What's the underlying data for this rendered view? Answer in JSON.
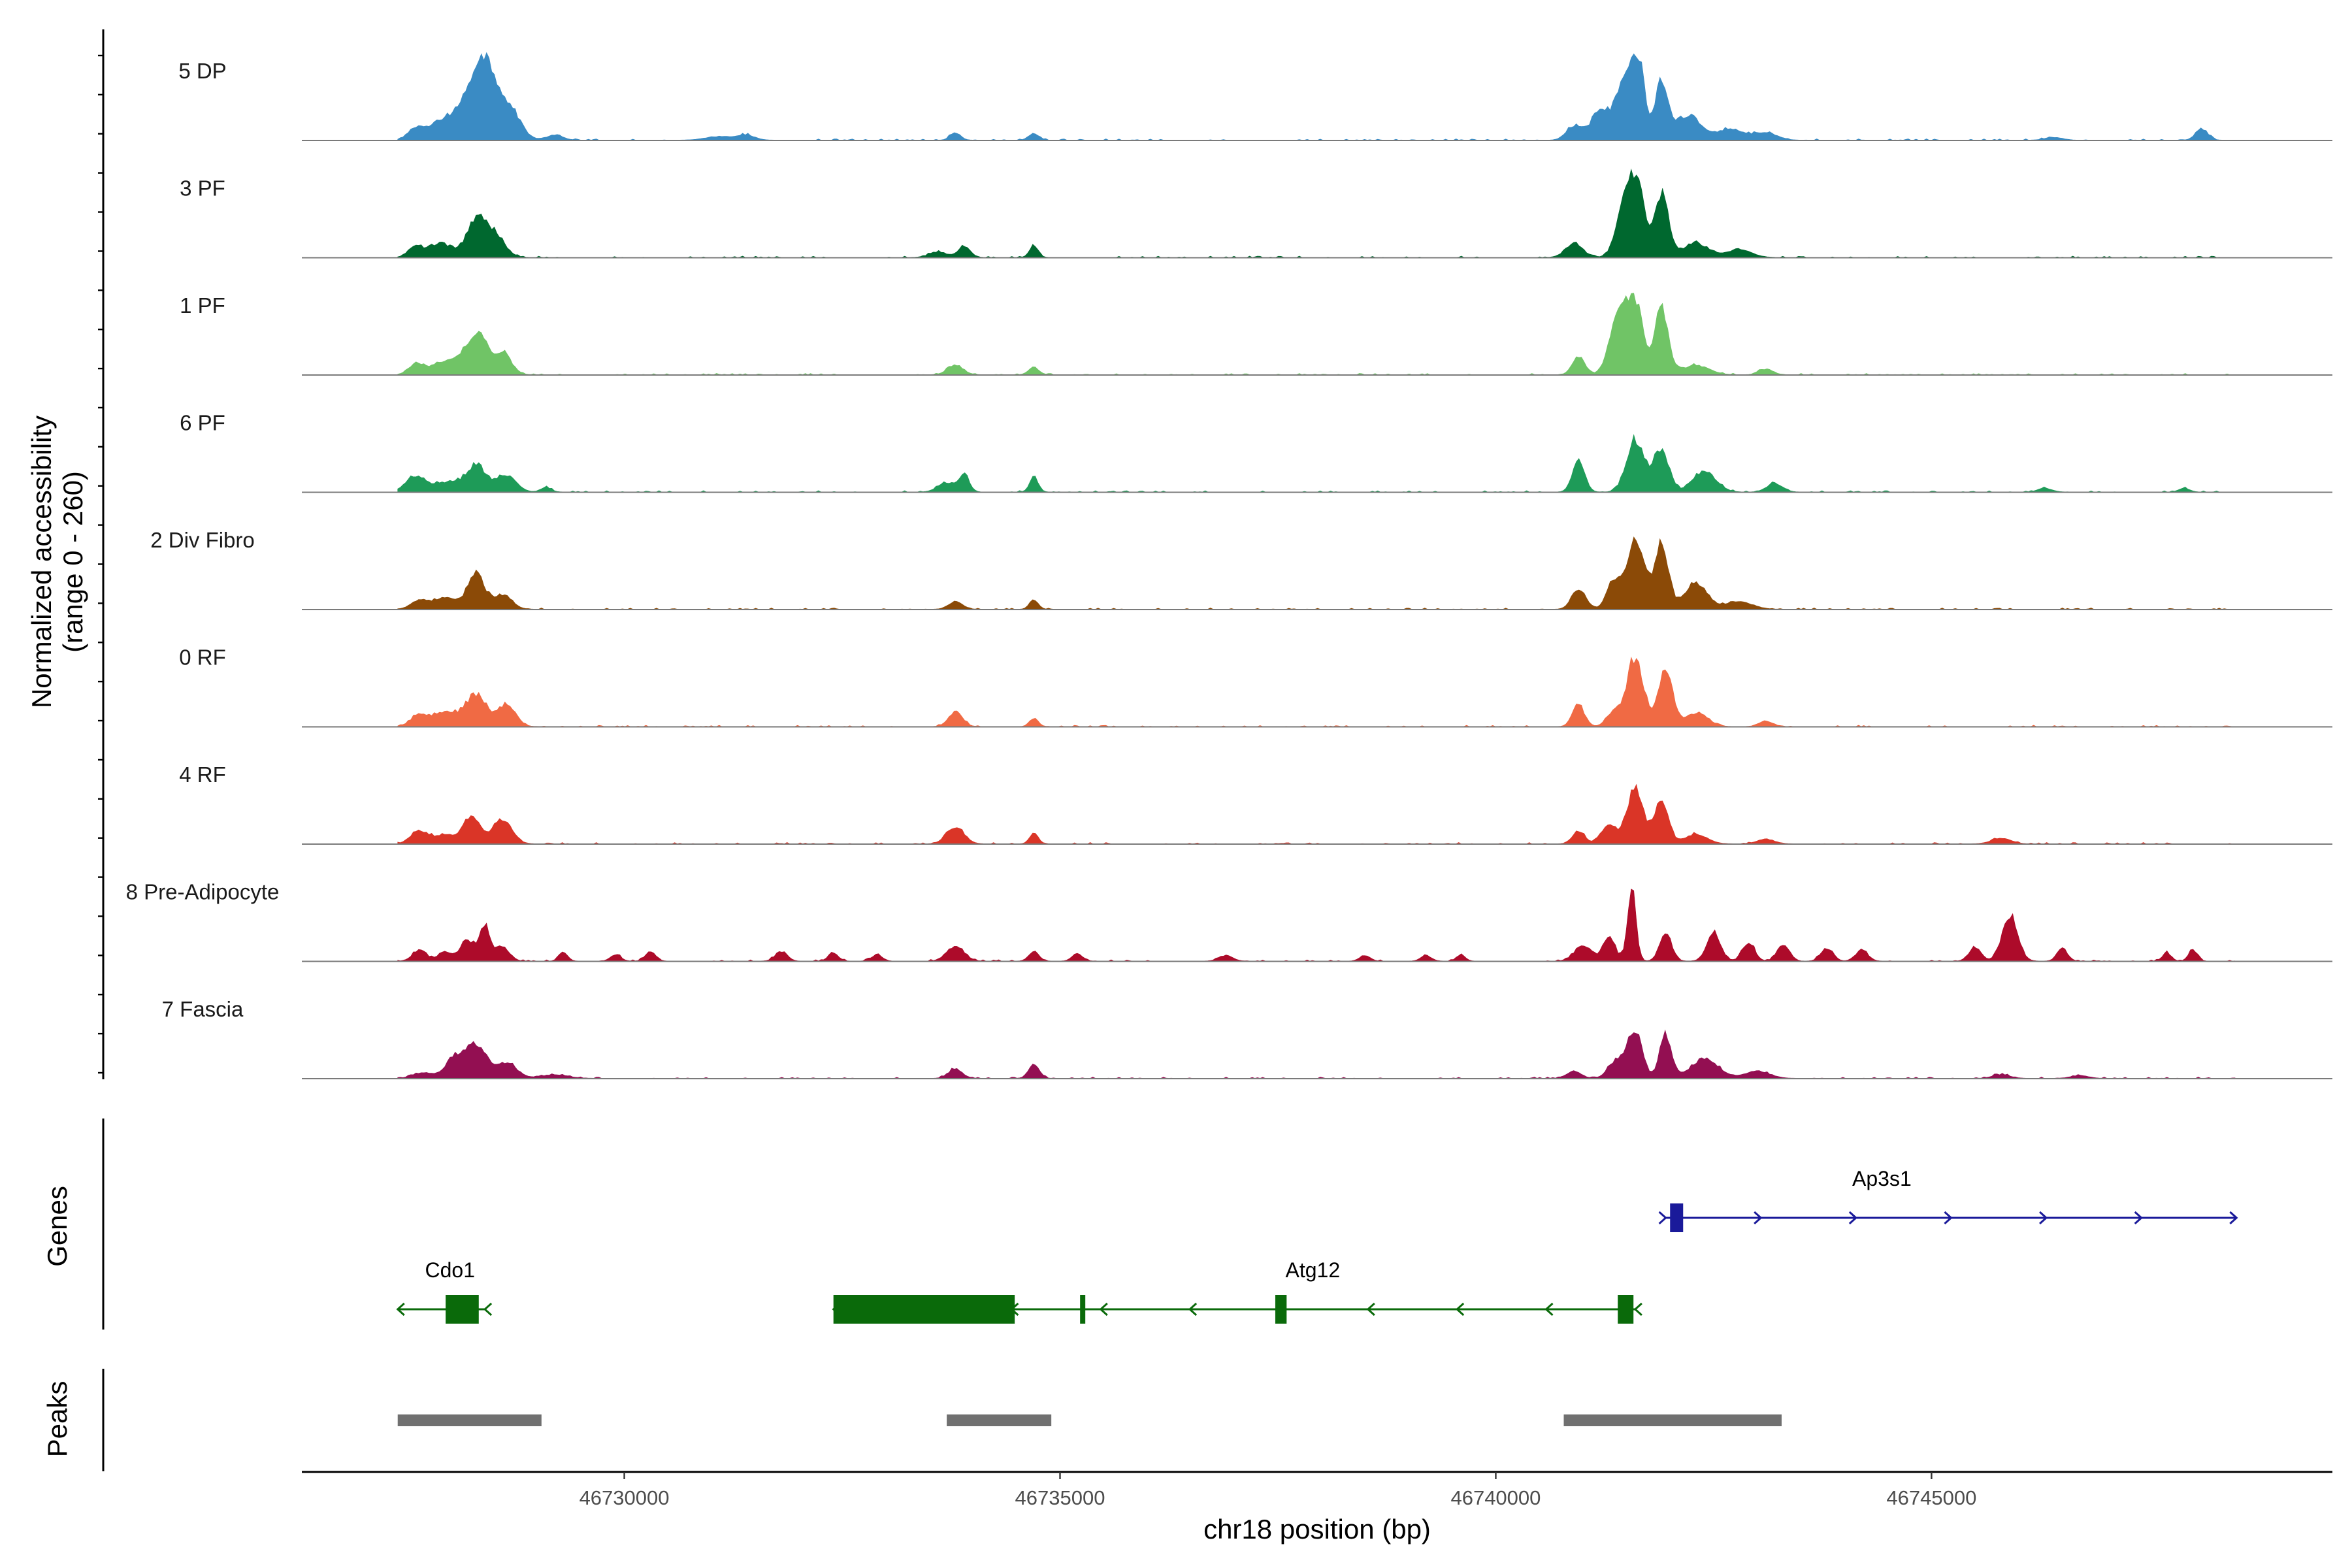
{
  "chart_data": {
    "type": "area",
    "title": "",
    "ylabel_line1": "Normalized accessibility",
    "ylabel_line2": "(range 0 - 260)",
    "xlabel": "chr18 position (bp)",
    "xlim": [
      46726300,
      46749600
    ],
    "ylim": [
      0,
      260
    ],
    "xticks": [
      46730000,
      46735000,
      46740000,
      46745000
    ],
    "xtick_labels": [
      "46730000",
      "46735000",
      "46740000",
      "46745000"
    ],
    "tracks": [
      {
        "name": "5 DP",
        "color": "#3A8BC4",
        "region_start": 46727400,
        "region_end": 46748500,
        "peaks": [
          {
            "pos": 46727600,
            "h": 0.1,
            "w": 80
          },
          {
            "pos": 46727900,
            "h": 0.18,
            "w": 180
          },
          {
            "pos": 46728200,
            "h": 0.35,
            "w": 140
          },
          {
            "pos": 46728350,
            "h": 0.55,
            "w": 90
          },
          {
            "pos": 46728500,
            "h": 0.48,
            "w": 100
          },
          {
            "pos": 46728700,
            "h": 0.3,
            "w": 120
          },
          {
            "pos": 46729200,
            "h": 0.05,
            "w": 100
          },
          {
            "pos": 46731100,
            "h": 0.04,
            "w": 160
          },
          {
            "pos": 46731400,
            "h": 0.05,
            "w": 100
          },
          {
            "pos": 46733800,
            "h": 0.08,
            "w": 60
          },
          {
            "pos": 46734700,
            "h": 0.07,
            "w": 60
          },
          {
            "pos": 46740900,
            "h": 0.15,
            "w": 90
          },
          {
            "pos": 46741200,
            "h": 0.3,
            "w": 110
          },
          {
            "pos": 46741500,
            "h": 0.68,
            "w": 110
          },
          {
            "pos": 46741650,
            "h": 0.6,
            "w": 70
          },
          {
            "pos": 46741900,
            "h": 0.58,
            "w": 70
          },
          {
            "pos": 46742200,
            "h": 0.25,
            "w": 160
          },
          {
            "pos": 46742700,
            "h": 0.12,
            "w": 150
          },
          {
            "pos": 46743100,
            "h": 0.08,
            "w": 130
          },
          {
            "pos": 46746400,
            "h": 0.03,
            "w": 100
          },
          {
            "pos": 46748100,
            "h": 0.12,
            "w": 70
          }
        ]
      },
      {
        "name": "3 PF",
        "color": "#00682F",
        "region_start": 46727400,
        "region_end": 46748500,
        "peaks": [
          {
            "pos": 46727600,
            "h": 0.1,
            "w": 80
          },
          {
            "pos": 46727900,
            "h": 0.14,
            "w": 160
          },
          {
            "pos": 46728300,
            "h": 0.38,
            "w": 100
          },
          {
            "pos": 46728500,
            "h": 0.25,
            "w": 120
          },
          {
            "pos": 46733600,
            "h": 0.06,
            "w": 100
          },
          {
            "pos": 46733900,
            "h": 0.12,
            "w": 70
          },
          {
            "pos": 46734700,
            "h": 0.12,
            "w": 50
          },
          {
            "pos": 46740900,
            "h": 0.15,
            "w": 100
          },
          {
            "pos": 46741500,
            "h": 0.72,
            "w": 100
          },
          {
            "pos": 46741650,
            "h": 0.55,
            "w": 70
          },
          {
            "pos": 46741900,
            "h": 0.68,
            "w": 80
          },
          {
            "pos": 46742300,
            "h": 0.15,
            "w": 150
          },
          {
            "pos": 46742800,
            "h": 0.08,
            "w": 140
          }
        ]
      },
      {
        "name": "1 PF",
        "color": "#70C466",
        "region_start": 46727400,
        "region_end": 46748500,
        "peaks": [
          {
            "pos": 46727600,
            "h": 0.1,
            "w": 80
          },
          {
            "pos": 46727900,
            "h": 0.12,
            "w": 160
          },
          {
            "pos": 46728200,
            "h": 0.22,
            "w": 120
          },
          {
            "pos": 46728350,
            "h": 0.32,
            "w": 90
          },
          {
            "pos": 46728600,
            "h": 0.24,
            "w": 100
          },
          {
            "pos": 46733800,
            "h": 0.1,
            "w": 90
          },
          {
            "pos": 46734700,
            "h": 0.08,
            "w": 60
          },
          {
            "pos": 46740950,
            "h": 0.2,
            "w": 70
          },
          {
            "pos": 46741400,
            "h": 0.6,
            "w": 100
          },
          {
            "pos": 46741600,
            "h": 0.75,
            "w": 90
          },
          {
            "pos": 46741900,
            "h": 0.7,
            "w": 80
          },
          {
            "pos": 46742300,
            "h": 0.1,
            "w": 150
          },
          {
            "pos": 46743100,
            "h": 0.06,
            "w": 80
          }
        ]
      },
      {
        "name": "6 PF",
        "color": "#1E9B58",
        "region_start": 46727400,
        "region_end": 46748500,
        "peaks": [
          {
            "pos": 46727600,
            "h": 0.16,
            "w": 110
          },
          {
            "pos": 46727950,
            "h": 0.1,
            "w": 150
          },
          {
            "pos": 46728300,
            "h": 0.28,
            "w": 120
          },
          {
            "pos": 46728650,
            "h": 0.18,
            "w": 110
          },
          {
            "pos": 46729100,
            "h": 0.05,
            "w": 60
          },
          {
            "pos": 46733700,
            "h": 0.1,
            "w": 100
          },
          {
            "pos": 46733900,
            "h": 0.18,
            "w": 60
          },
          {
            "pos": 46734700,
            "h": 0.16,
            "w": 50
          },
          {
            "pos": 46740950,
            "h": 0.34,
            "w": 70
          },
          {
            "pos": 46741600,
            "h": 0.55,
            "w": 100
          },
          {
            "pos": 46741900,
            "h": 0.45,
            "w": 90
          },
          {
            "pos": 46742400,
            "h": 0.22,
            "w": 130
          },
          {
            "pos": 46743200,
            "h": 0.09,
            "w": 90
          },
          {
            "pos": 46746300,
            "h": 0.04,
            "w": 80
          },
          {
            "pos": 46747900,
            "h": 0.04,
            "w": 60
          }
        ]
      },
      {
        "name": "2 Div Fibro",
        "color": "#8B4A07",
        "region_start": 46727400,
        "region_end": 46748500,
        "peaks": [
          {
            "pos": 46727650,
            "h": 0.09,
            "w": 100
          },
          {
            "pos": 46727950,
            "h": 0.12,
            "w": 140
          },
          {
            "pos": 46728300,
            "h": 0.4,
            "w": 90
          },
          {
            "pos": 46728600,
            "h": 0.15,
            "w": 110
          },
          {
            "pos": 46733800,
            "h": 0.08,
            "w": 80
          },
          {
            "pos": 46734700,
            "h": 0.1,
            "w": 50
          },
          {
            "pos": 46740950,
            "h": 0.22,
            "w": 80
          },
          {
            "pos": 46741350,
            "h": 0.3,
            "w": 80
          },
          {
            "pos": 46741600,
            "h": 0.75,
            "w": 100
          },
          {
            "pos": 46741900,
            "h": 0.68,
            "w": 80
          },
          {
            "pos": 46742300,
            "h": 0.28,
            "w": 130
          },
          {
            "pos": 46742800,
            "h": 0.08,
            "w": 150
          }
        ]
      },
      {
        "name": "0 RF",
        "color": "#F06A44",
        "region_start": 46727400,
        "region_end": 46748500,
        "peaks": [
          {
            "pos": 46727650,
            "h": 0.12,
            "w": 100
          },
          {
            "pos": 46727950,
            "h": 0.15,
            "w": 140
          },
          {
            "pos": 46728300,
            "h": 0.33,
            "w": 120
          },
          {
            "pos": 46728650,
            "h": 0.24,
            "w": 100
          },
          {
            "pos": 46733800,
            "h": 0.16,
            "w": 80
          },
          {
            "pos": 46734700,
            "h": 0.09,
            "w": 50
          },
          {
            "pos": 46740950,
            "h": 0.22,
            "w": 70
          },
          {
            "pos": 46741350,
            "h": 0.14,
            "w": 80
          },
          {
            "pos": 46741600,
            "h": 0.72,
            "w": 100
          },
          {
            "pos": 46741950,
            "h": 0.62,
            "w": 80
          },
          {
            "pos": 46742300,
            "h": 0.14,
            "w": 130
          },
          {
            "pos": 46743100,
            "h": 0.06,
            "w": 80
          }
        ]
      },
      {
        "name": "4 RF",
        "color": "#DA3527",
        "region_start": 46727400,
        "region_end": 46748500,
        "peaks": [
          {
            "pos": 46727650,
            "h": 0.14,
            "w": 100
          },
          {
            "pos": 46727950,
            "h": 0.09,
            "w": 120
          },
          {
            "pos": 46728250,
            "h": 0.28,
            "w": 100
          },
          {
            "pos": 46728600,
            "h": 0.26,
            "w": 110
          },
          {
            "pos": 46733800,
            "h": 0.18,
            "w": 100
          },
          {
            "pos": 46734700,
            "h": 0.11,
            "w": 50
          },
          {
            "pos": 46740950,
            "h": 0.14,
            "w": 70
          },
          {
            "pos": 46741300,
            "h": 0.2,
            "w": 90
          },
          {
            "pos": 46741600,
            "h": 0.62,
            "w": 90
          },
          {
            "pos": 46741900,
            "h": 0.46,
            "w": 80
          },
          {
            "pos": 46742300,
            "h": 0.1,
            "w": 130
          },
          {
            "pos": 46743100,
            "h": 0.05,
            "w": 100
          },
          {
            "pos": 46745800,
            "h": 0.06,
            "w": 110
          }
        ]
      },
      {
        "name": "8 Pre-Adipocyte",
        "color": "#AD0B2A",
        "region_start": 46727400,
        "region_end": 46748500,
        "peaks": [
          {
            "pos": 46727650,
            "h": 0.12,
            "w": 80
          },
          {
            "pos": 46727950,
            "h": 0.1,
            "w": 80
          },
          {
            "pos": 46728200,
            "h": 0.22,
            "w": 80
          },
          {
            "pos": 46728400,
            "h": 0.38,
            "w": 60
          },
          {
            "pos": 46728600,
            "h": 0.16,
            "w": 80
          },
          {
            "pos": 46729300,
            "h": 0.1,
            "w": 50
          },
          {
            "pos": 46729900,
            "h": 0.07,
            "w": 60
          },
          {
            "pos": 46730300,
            "h": 0.1,
            "w": 60
          },
          {
            "pos": 46731800,
            "h": 0.1,
            "w": 70
          },
          {
            "pos": 46732400,
            "h": 0.08,
            "w": 60
          },
          {
            "pos": 46732900,
            "h": 0.07,
            "w": 60
          },
          {
            "pos": 46733800,
            "h": 0.16,
            "w": 100
          },
          {
            "pos": 46734700,
            "h": 0.1,
            "w": 60
          },
          {
            "pos": 46735200,
            "h": 0.08,
            "w": 60
          },
          {
            "pos": 46736900,
            "h": 0.06,
            "w": 80
          },
          {
            "pos": 46738500,
            "h": 0.06,
            "w": 60
          },
          {
            "pos": 46739200,
            "h": 0.06,
            "w": 60
          },
          {
            "pos": 46739600,
            "h": 0.07,
            "w": 50
          },
          {
            "pos": 46741000,
            "h": 0.16,
            "w": 100
          },
          {
            "pos": 46741300,
            "h": 0.26,
            "w": 70
          },
          {
            "pos": 46741560,
            "h": 0.75,
            "w": 50
          },
          {
            "pos": 46741950,
            "h": 0.3,
            "w": 70
          },
          {
            "pos": 46742500,
            "h": 0.3,
            "w": 80
          },
          {
            "pos": 46742900,
            "h": 0.2,
            "w": 70
          },
          {
            "pos": 46743300,
            "h": 0.18,
            "w": 70
          },
          {
            "pos": 46743800,
            "h": 0.14,
            "w": 70
          },
          {
            "pos": 46744200,
            "h": 0.12,
            "w": 70
          },
          {
            "pos": 46745500,
            "h": 0.15,
            "w": 70
          },
          {
            "pos": 46745900,
            "h": 0.48,
            "w": 90
          },
          {
            "pos": 46746500,
            "h": 0.14,
            "w": 60
          },
          {
            "pos": 46747700,
            "h": 0.09,
            "w": 50
          },
          {
            "pos": 46748000,
            "h": 0.12,
            "w": 50
          }
        ]
      },
      {
        "name": "7 Fascia",
        "color": "#930F52",
        "region_start": 46727400,
        "region_end": 46748500,
        "peaks": [
          {
            "pos": 46727700,
            "h": 0.06,
            "w": 120
          },
          {
            "pos": 46728050,
            "h": 0.2,
            "w": 100
          },
          {
            "pos": 46728300,
            "h": 0.36,
            "w": 120
          },
          {
            "pos": 46728650,
            "h": 0.16,
            "w": 120
          },
          {
            "pos": 46729200,
            "h": 0.04,
            "w": 150
          },
          {
            "pos": 46733800,
            "h": 0.1,
            "w": 80
          },
          {
            "pos": 46734700,
            "h": 0.16,
            "w": 60
          },
          {
            "pos": 46740900,
            "h": 0.08,
            "w": 80
          },
          {
            "pos": 46741400,
            "h": 0.2,
            "w": 100
          },
          {
            "pos": 46741600,
            "h": 0.5,
            "w": 80
          },
          {
            "pos": 46741950,
            "h": 0.45,
            "w": 70
          },
          {
            "pos": 46742400,
            "h": 0.2,
            "w": 160
          },
          {
            "pos": 46743000,
            "h": 0.08,
            "w": 140
          },
          {
            "pos": 46745800,
            "h": 0.04,
            "w": 100
          },
          {
            "pos": 46746700,
            "h": 0.03,
            "w": 100
          }
        ]
      }
    ],
    "genes_panel_label": "Genes",
    "genes": [
      {
        "name": "Ap3s1",
        "strand": "+",
        "color": "#1A1A9A",
        "start": 46741950,
        "end": 46748500,
        "exons": [
          [
            46742000,
            46742150
          ]
        ]
      },
      {
        "name": "Cdo1",
        "strand": "-",
        "color": "#0A6A0A",
        "start": 46727400,
        "end": 46728400,
        "exons": [
          [
            46727950,
            46728330
          ]
        ]
      },
      {
        "name": "Atg12",
        "strand": "-",
        "color": "#0A6A0A",
        "start": 46732400,
        "end": 46741600,
        "exons": [
          [
            46732400,
            46734480
          ],
          [
            46735230,
            46735280
          ],
          [
            46737470,
            46737600
          ],
          [
            46741400,
            46741580
          ]
        ]
      }
    ],
    "peaks_panel_label": "Peaks",
    "peak_regions": [
      {
        "start": 46727400,
        "end": 46729050,
        "color": "#707070"
      },
      {
        "start": 46733700,
        "end": 46734900,
        "color": "#707070"
      },
      {
        "start": 46740780,
        "end": 46743280,
        "color": "#707070"
      }
    ]
  }
}
